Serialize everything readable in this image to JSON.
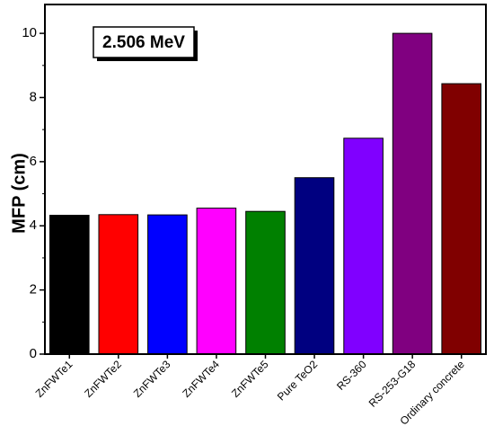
{
  "chart_data": {
    "type": "bar",
    "categories": [
      "ZnFWTe1",
      "ZnFWTe2",
      "ZnFWTe3",
      "ZnFWTe4",
      "ZnFWTe5",
      "Pure TeO2",
      "RS-360",
      "RS-253-G18",
      "Ordinary concrete"
    ],
    "values": [
      4.33,
      4.35,
      4.34,
      4.55,
      4.45,
      5.5,
      6.73,
      10.0,
      8.43
    ],
    "colors": [
      "#000000",
      "#ff0000",
      "#0000ff",
      "#ff00ff",
      "#008000",
      "#000080",
      "#8000ff",
      "#800080",
      "#800000"
    ],
    "title": "",
    "xlabel": "",
    "ylabel": "MFP (cm)",
    "ylim": [
      0,
      10.9
    ],
    "yticks": [
      "0",
      "2",
      "4",
      "6",
      "8",
      "10"
    ],
    "annotation": "2.506 MeV",
    "grid": false,
    "legend": "none"
  }
}
